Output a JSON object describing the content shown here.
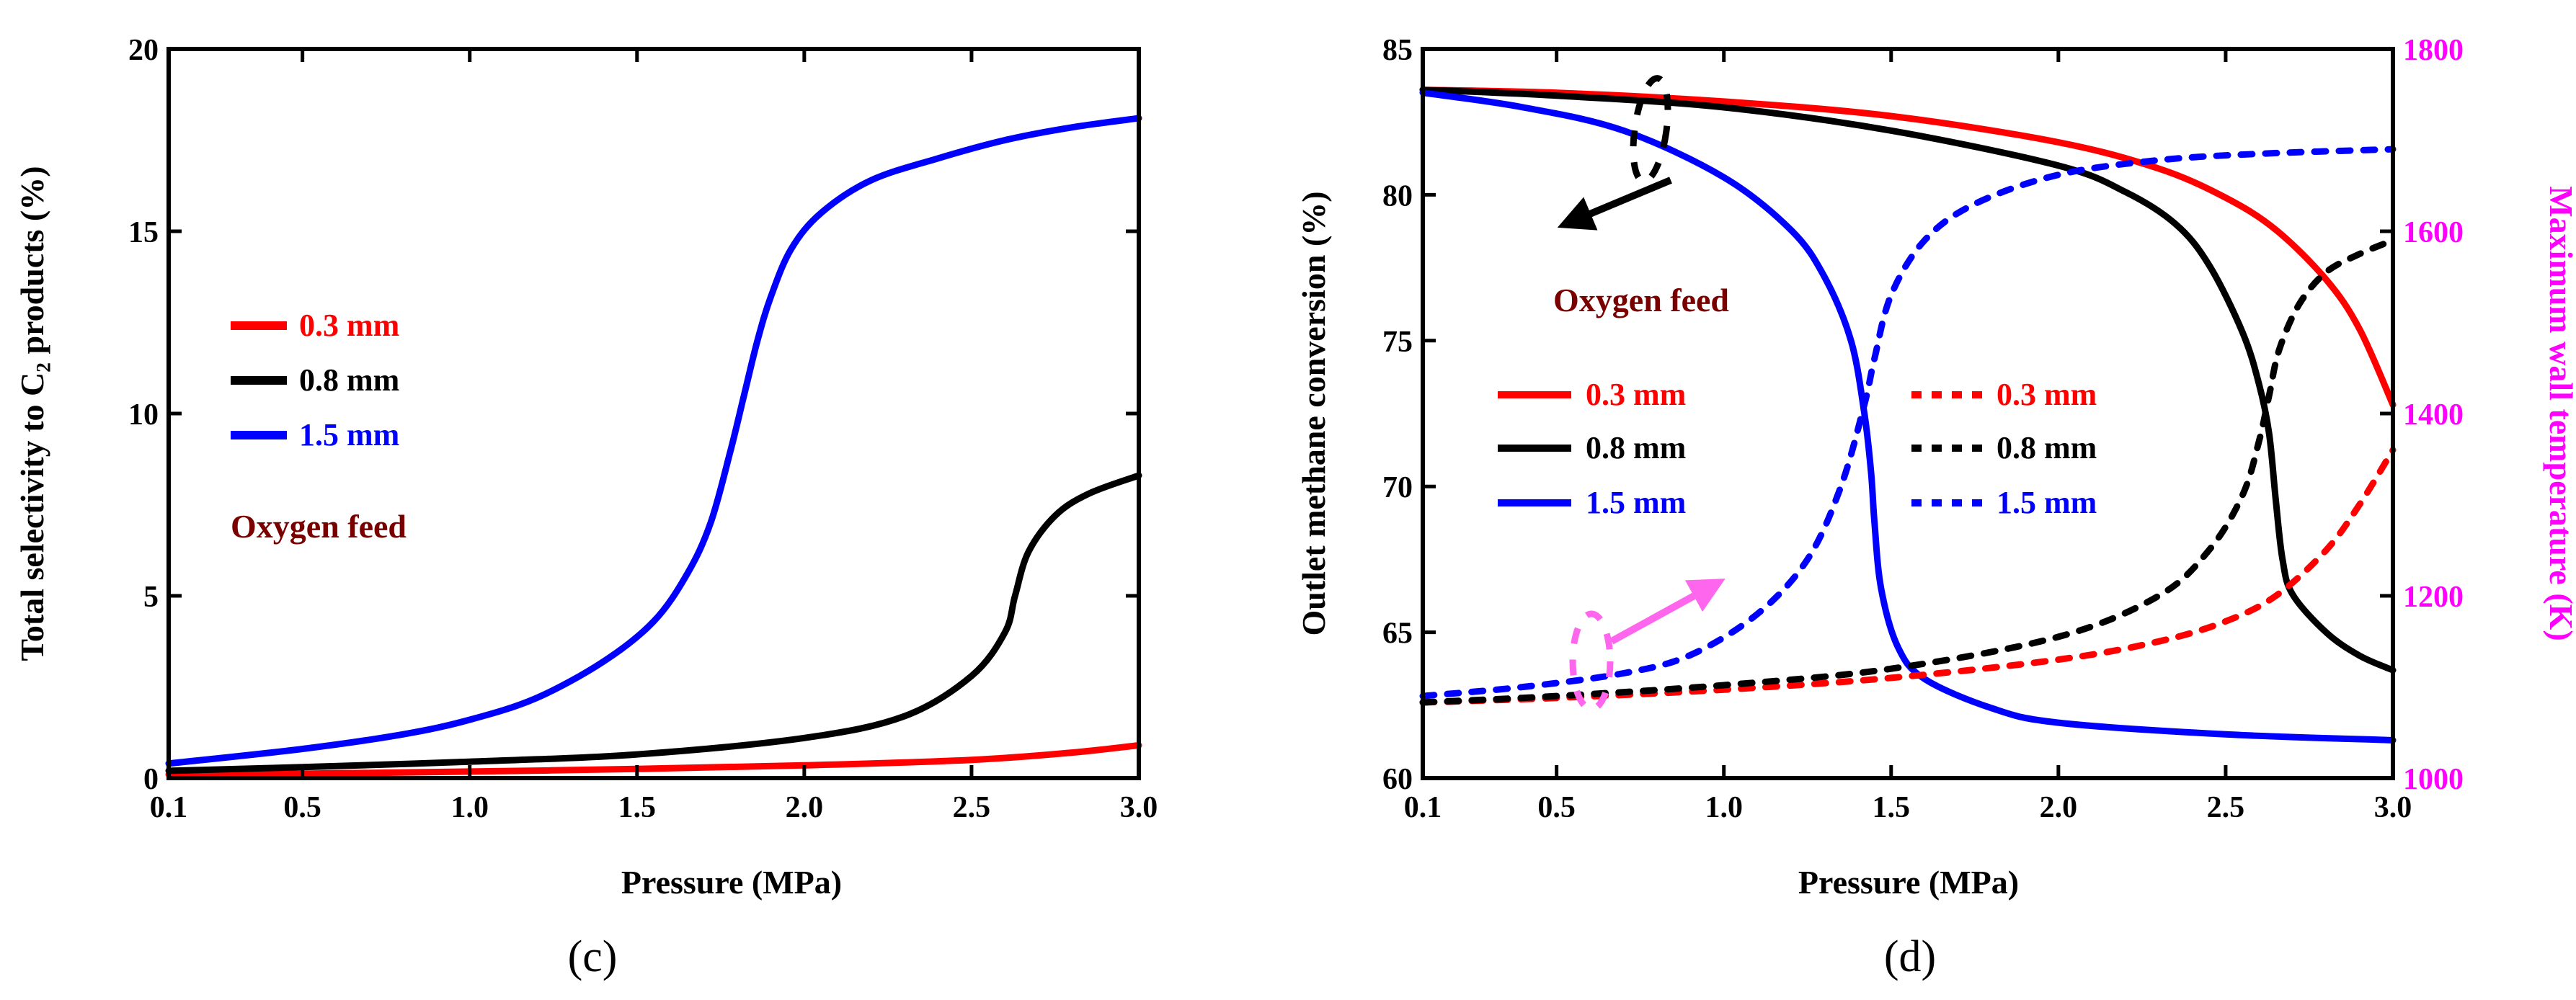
{
  "chart_data": [
    {
      "type": "line",
      "panel_label": "(c)",
      "xlabel": "Pressure (MPa)",
      "ylabel": "Total selectivity to C₂ products (%)",
      "xlim": [
        0.1,
        3.0
      ],
      "ylim": [
        0,
        20
      ],
      "xticks": [
        "0.1",
        "0.5",
        "1.0",
        "1.5",
        "2.0",
        "2.5",
        "3.0"
      ],
      "yticks": [
        "0",
        "5",
        "10",
        "15",
        "20"
      ],
      "annotation": "Oxygen feed",
      "series": [
        {
          "name": "0.3 mm",
          "color": "#ff0000",
          "style": "solid",
          "x": [
            0.1,
            0.5,
            1.0,
            1.5,
            2.0,
            2.5,
            2.8,
            3.0
          ],
          "y": [
            0.1,
            0.12,
            0.18,
            0.25,
            0.35,
            0.5,
            0.7,
            0.9
          ]
        },
        {
          "name": "0.8 mm",
          "color": "#000000",
          "style": "solid",
          "x": [
            0.1,
            0.5,
            1.0,
            1.5,
            2.0,
            2.3,
            2.5,
            2.6,
            2.63,
            2.67,
            2.75,
            2.85,
            3.0
          ],
          "y": [
            0.2,
            0.3,
            0.45,
            0.65,
            1.1,
            1.7,
            2.8,
            4.0,
            5.0,
            6.2,
            7.2,
            7.8,
            8.3
          ]
        },
        {
          "name": "1.5 mm",
          "color": "#0000ff",
          "style": "solid",
          "x": [
            0.1,
            0.5,
            0.8,
            1.0,
            1.2,
            1.4,
            1.55,
            1.65,
            1.72,
            1.78,
            1.82,
            1.86,
            1.9,
            1.96,
            2.05,
            2.2,
            2.4,
            2.6,
            2.8,
            3.0
          ],
          "y": [
            0.4,
            0.8,
            1.2,
            1.6,
            2.2,
            3.2,
            4.3,
            5.6,
            7.0,
            9.0,
            10.5,
            12.0,
            13.2,
            14.5,
            15.5,
            16.4,
            17.0,
            17.5,
            17.85,
            18.1
          ]
        }
      ]
    },
    {
      "type": "line",
      "panel_label": "(d)",
      "xlabel": "Pressure (MPa)",
      "ylabel": "Outlet methane conversion (%)",
      "y2label": "Maximum wall temperature (K)",
      "xlim": [
        0.1,
        3.0
      ],
      "ylim": [
        60,
        85
      ],
      "y2lim": [
        1000,
        1800
      ],
      "xticks": [
        "0.1",
        "0.5",
        "1.0",
        "1.5",
        "2.0",
        "2.5",
        "3.0"
      ],
      "yticks": [
        "60",
        "65",
        "70",
        "75",
        "80",
        "85"
      ],
      "y2ticks": [
        "1000",
        "1200",
        "1400",
        "1600",
        "1800"
      ],
      "annotation": "Oxygen feed",
      "series": [
        {
          "name": "0.3 mm",
          "color": "#ff0000",
          "style": "solid",
          "axis": "left",
          "x": [
            0.1,
            0.5,
            1.0,
            1.5,
            2.0,
            2.3,
            2.5,
            2.65,
            2.8,
            2.9,
            3.0
          ],
          "y": [
            83.6,
            83.5,
            83.2,
            82.7,
            81.8,
            80.9,
            79.9,
            78.8,
            77.1,
            75.4,
            72.8
          ]
        },
        {
          "name": "0.8 mm",
          "color": "#000000",
          "style": "solid",
          "axis": "left",
          "x": [
            0.1,
            0.5,
            1.0,
            1.5,
            2.0,
            2.2,
            2.35,
            2.45,
            2.55,
            2.6,
            2.63,
            2.65,
            2.67,
            2.7,
            2.8,
            2.9,
            3.0
          ],
          "y": [
            83.6,
            83.4,
            83.0,
            82.2,
            81.0,
            80.1,
            79.0,
            77.6,
            75.3,
            73.5,
            71.8,
            69.5,
            67.5,
            66.3,
            65.0,
            64.2,
            63.7
          ]
        },
        {
          "name": "1.5 mm",
          "color": "#0000ff",
          "style": "solid",
          "axis": "left",
          "x": [
            0.1,
            0.4,
            0.7,
            1.0,
            1.2,
            1.3,
            1.38,
            1.42,
            1.44,
            1.45,
            1.47,
            1.52,
            1.6,
            1.8,
            2.0,
            2.5,
            3.0
          ],
          "y": [
            83.5,
            83.0,
            82.2,
            80.6,
            78.8,
            77.2,
            75.0,
            72.5,
            70.5,
            68.8,
            66.5,
            64.5,
            63.4,
            62.4,
            61.9,
            61.5,
            61.3
          ]
        },
        {
          "name": "0.3 mm",
          "color": "#ff0000",
          "style": "dotted",
          "axis": "right",
          "x": [
            0.1,
            0.5,
            1.0,
            1.5,
            2.0,
            2.3,
            2.5,
            2.65,
            2.8,
            2.9,
            3.0
          ],
          "y": [
            1083,
            1088,
            1097,
            1110,
            1130,
            1150,
            1172,
            1200,
            1250,
            1300,
            1360
          ]
        },
        {
          "name": "0.8 mm",
          "color": "#000000",
          "style": "dotted",
          "axis": "right",
          "x": [
            0.1,
            0.5,
            1.0,
            1.5,
            2.0,
            2.3,
            2.45,
            2.55,
            2.6,
            2.63,
            2.66,
            2.72,
            2.8,
            2.9,
            3.0
          ],
          "y": [
            1083,
            1090,
            1102,
            1120,
            1155,
            1200,
            1250,
            1310,
            1370,
            1420,
            1470,
            1520,
            1555,
            1575,
            1590
          ]
        },
        {
          "name": "1.5 mm",
          "color": "#0000ff",
          "style": "dotted",
          "axis": "right",
          "x": [
            0.1,
            0.4,
            0.7,
            0.9,
            1.1,
            1.25,
            1.35,
            1.42,
            1.45,
            1.5,
            1.6,
            1.75,
            2.0,
            2.3,
            2.6,
            3.0
          ],
          "y": [
            1090,
            1100,
            1115,
            1135,
            1180,
            1240,
            1320,
            1410,
            1460,
            1530,
            1590,
            1630,
            1662,
            1678,
            1685,
            1690
          ]
        }
      ]
    }
  ]
}
